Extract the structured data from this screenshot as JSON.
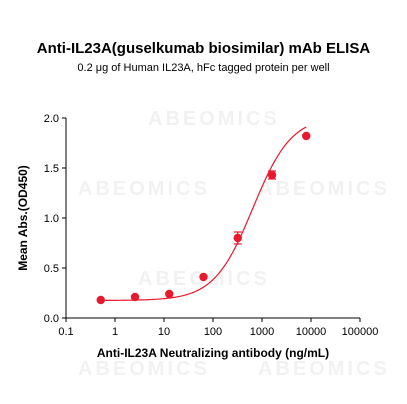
{
  "chart_data": {
    "type": "scatter",
    "title": "Anti-IL23A(guselkumab biosimilar) mAb ELISA",
    "subtitle": "0.2 μg of Human IL23A, hFc tagged protein per well",
    "xlabel": "Anti-IL23A Neutralizing antibody (ng/mL)",
    "ylabel": "Mean Abs.(OD450)",
    "x_scale": "log",
    "xlim": [
      0.1,
      100000
    ],
    "ylim": [
      0.0,
      2.0
    ],
    "x_ticks": [
      "0.1",
      "1",
      "10",
      "100",
      "1000",
      "10000",
      "100000"
    ],
    "y_ticks": [
      "0.0",
      "0.5",
      "1.0",
      "1.5",
      "2.0"
    ],
    "grid": false,
    "color": "#e8192c",
    "series": [
      {
        "x": [
          0.512,
          2.56,
          12.8,
          64,
          320,
          1600,
          8000
        ],
        "y": [
          0.18,
          0.21,
          0.24,
          0.41,
          0.8,
          1.43,
          1.82
        ],
        "error": [
          0.0,
          0.0,
          0.0,
          0.0,
          0.06,
          0.04,
          0.0
        ],
        "fit": "4PL sigmoid"
      }
    ],
    "watermark": "ABEOMICS"
  }
}
